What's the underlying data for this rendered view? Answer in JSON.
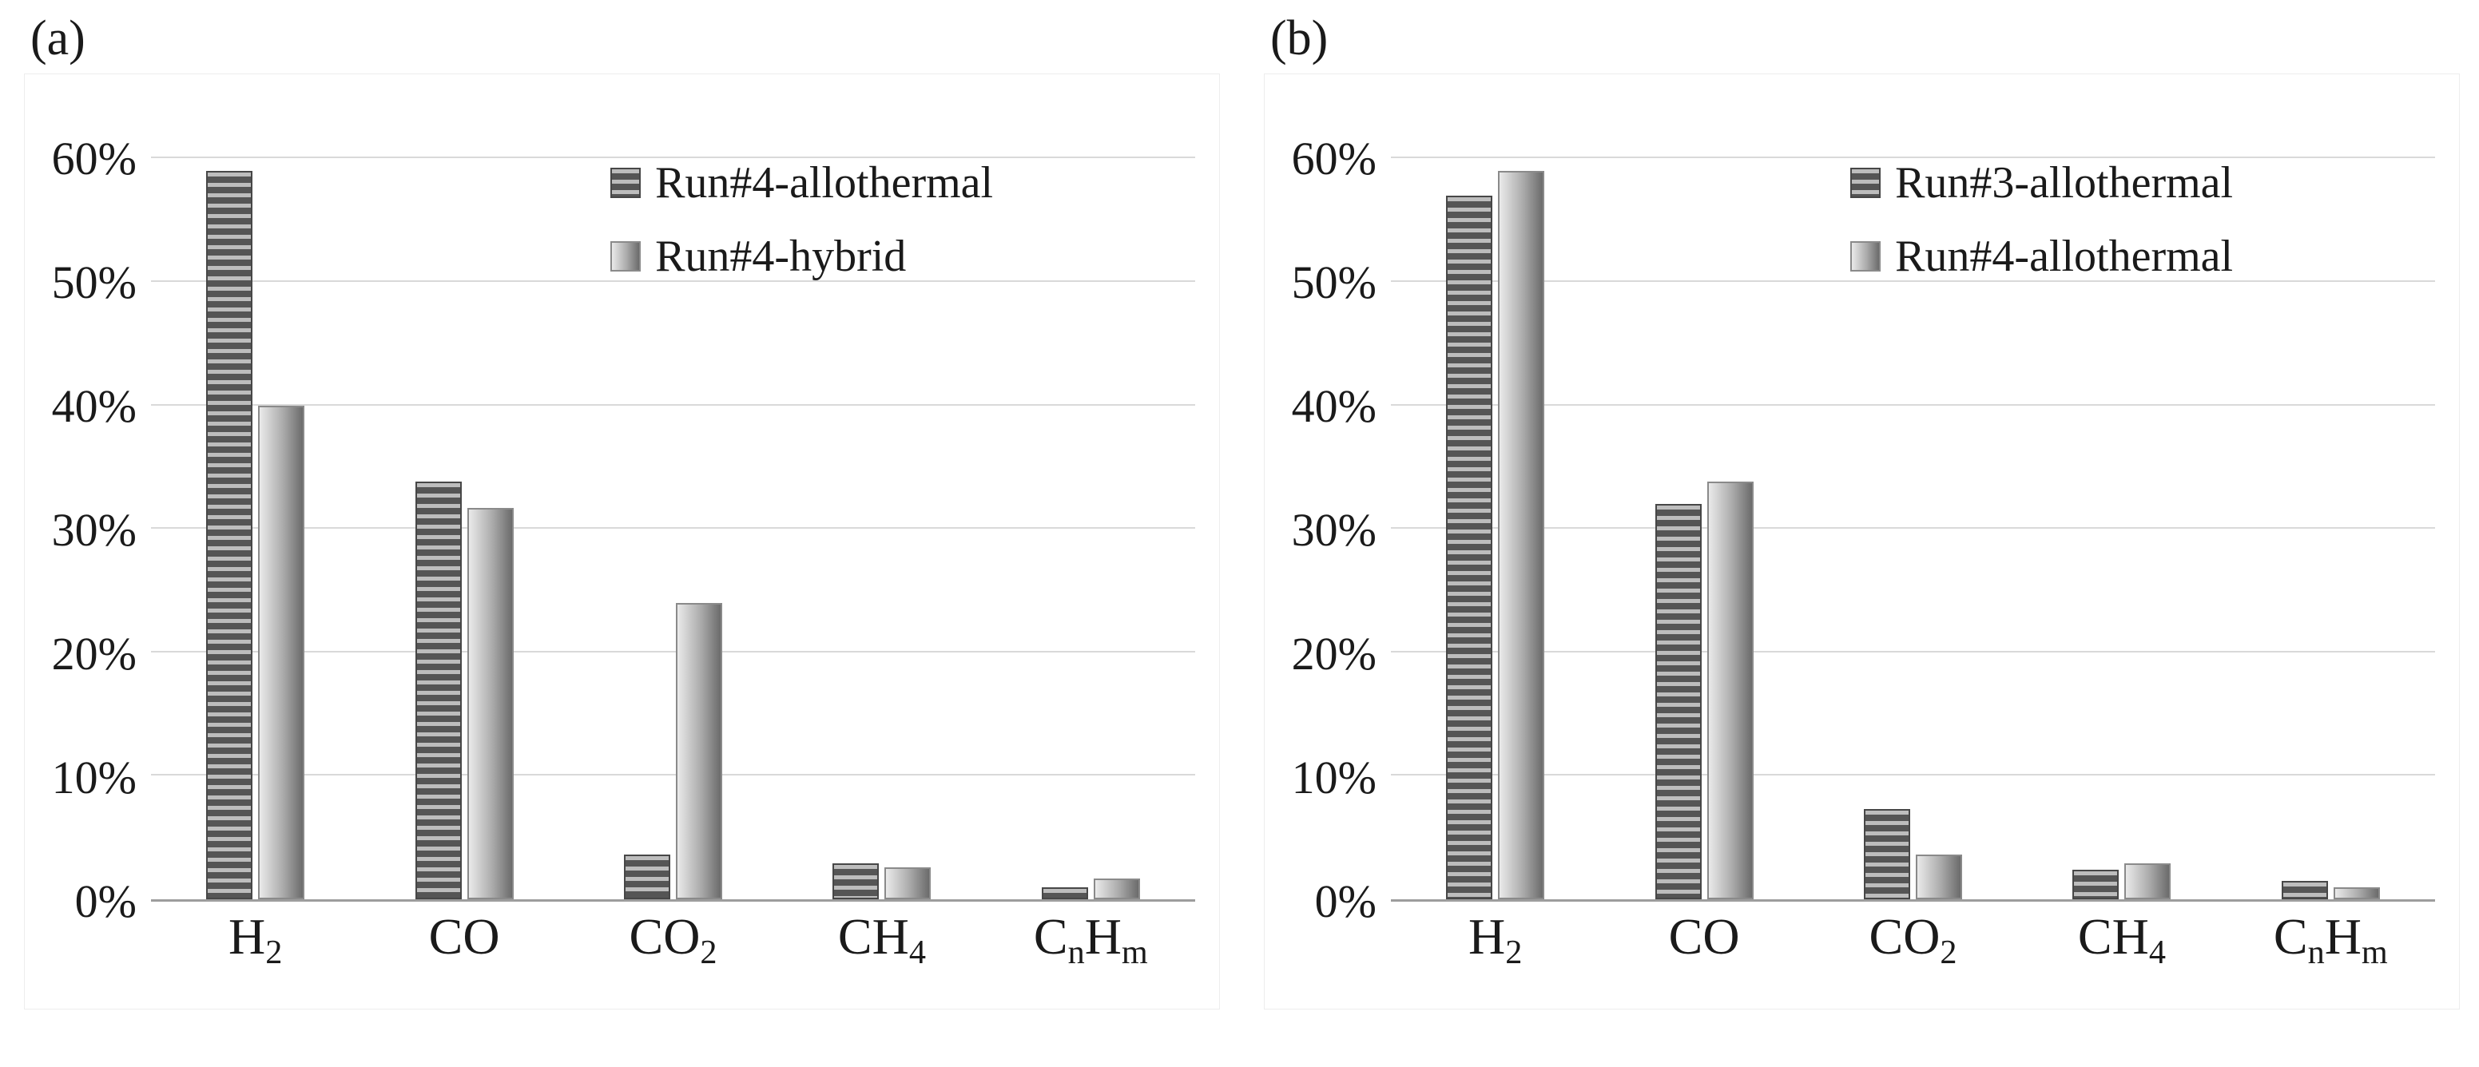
{
  "styles": {
    "background": "#ffffff",
    "text": "#1a1a1a",
    "gridline": "#d9d9d9",
    "axis_line": "#9d9d9d",
    "series1_dark": "#555555",
    "series1_light": "#bdbdbd",
    "series1_border": "#474747",
    "series2_left": "#eaeaea",
    "series2_mid": "#aaaaaa",
    "series2_right": "#6b6b6b",
    "series2_border": "#8a8a8a"
  },
  "chart_data": [
    {
      "id": "a",
      "type": "bar",
      "panel_label": "(a)",
      "title": "",
      "xlabel": "",
      "ylabel": "",
      "ylim": [
        0,
        65
      ],
      "grid": true,
      "legend_position": "inside-upper-right",
      "yticks": [
        {
          "value": 0,
          "label": "0%"
        },
        {
          "value": 10,
          "label": "10%"
        },
        {
          "value": 20,
          "label": "20%"
        },
        {
          "value": 30,
          "label": "30%"
        },
        {
          "value": 40,
          "label": "40%"
        },
        {
          "value": 50,
          "label": "50%"
        },
        {
          "value": 60,
          "label": "60%"
        }
      ],
      "categories": [
        "H2",
        "CO",
        "CO2",
        "CH4",
        "CnHm"
      ],
      "categories_rich": [
        [
          {
            "text": "H"
          },
          {
            "text": "2",
            "sub": true
          }
        ],
        [
          {
            "text": "CO"
          }
        ],
        [
          {
            "text": "CO"
          },
          {
            "text": "2",
            "sub": true
          }
        ],
        [
          {
            "text": "CH"
          },
          {
            "text": "4",
            "sub": true
          }
        ],
        [
          {
            "text": "C"
          },
          {
            "text": "n",
            "sub": true
          },
          {
            "text": "H"
          },
          {
            "text": "m",
            "sub": true
          }
        ]
      ],
      "series": [
        {
          "name": "Run#4-allothermal",
          "style": "striped",
          "values": [
            59,
            33.8,
            3.6,
            2.9,
            1.0
          ]
        },
        {
          "name": "Run#4-hybrid",
          "style": "gradient",
          "values": [
            40,
            31.7,
            24,
            2.6,
            1.7
          ]
        }
      ]
    },
    {
      "id": "b",
      "type": "bar",
      "panel_label": "(b)",
      "title": "",
      "xlabel": "",
      "ylabel": "",
      "ylim": [
        0,
        65
      ],
      "grid": true,
      "legend_position": "inside-upper-right",
      "yticks": [
        {
          "value": 0,
          "label": "0%"
        },
        {
          "value": 10,
          "label": "10%"
        },
        {
          "value": 20,
          "label": "20%"
        },
        {
          "value": 30,
          "label": "30%"
        },
        {
          "value": 40,
          "label": "40%"
        },
        {
          "value": 50,
          "label": "50%"
        },
        {
          "value": 60,
          "label": "60%"
        }
      ],
      "categories": [
        "H2",
        "CO",
        "CO2",
        "CH4",
        "CnHm"
      ],
      "categories_rich": [
        [
          {
            "text": "H"
          },
          {
            "text": "2",
            "sub": true
          }
        ],
        [
          {
            "text": "CO"
          }
        ],
        [
          {
            "text": "CO"
          },
          {
            "text": "2",
            "sub": true
          }
        ],
        [
          {
            "text": "CH"
          },
          {
            "text": "4",
            "sub": true
          }
        ],
        [
          {
            "text": "C"
          },
          {
            "text": "n",
            "sub": true
          },
          {
            "text": "H"
          },
          {
            "text": "m",
            "sub": true
          }
        ]
      ],
      "series": [
        {
          "name": "Run#3-allothermal",
          "style": "striped",
          "values": [
            57,
            32,
            7.3,
            2.4,
            1.5
          ]
        },
        {
          "name": "Run#4-allothermal",
          "style": "gradient",
          "values": [
            59,
            33.8,
            3.6,
            2.9,
            1.0
          ]
        }
      ]
    }
  ]
}
